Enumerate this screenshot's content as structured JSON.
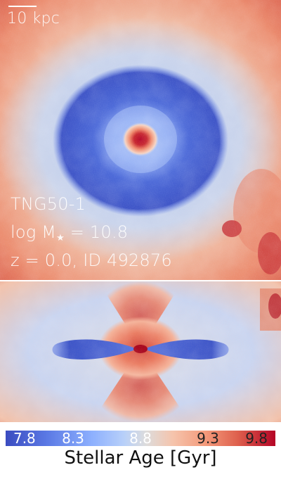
{
  "scalebar": {
    "label": "10 kpc"
  },
  "galaxy": {
    "simulation": "TNG50-1",
    "mass_label": "log M",
    "mass_subscript": "★",
    "mass_value": " = 10.8",
    "redshift_id": "z = 0.0, ID 492876"
  },
  "colorbar": {
    "label": "Stellar Age [Gyr]",
    "ticks": [
      "7.8",
      "8.3",
      "8.8",
      "9.3",
      "9.8"
    ],
    "colormap": [
      "#3b4cc0",
      "#b8d0f9",
      "#dddcdc",
      "#f49a7b",
      "#b40426"
    ]
  },
  "colors": {
    "young": "#3b4cc0",
    "intermediate": "#dddcdc",
    "old": "#b40426",
    "background": "#ef8b6c"
  }
}
